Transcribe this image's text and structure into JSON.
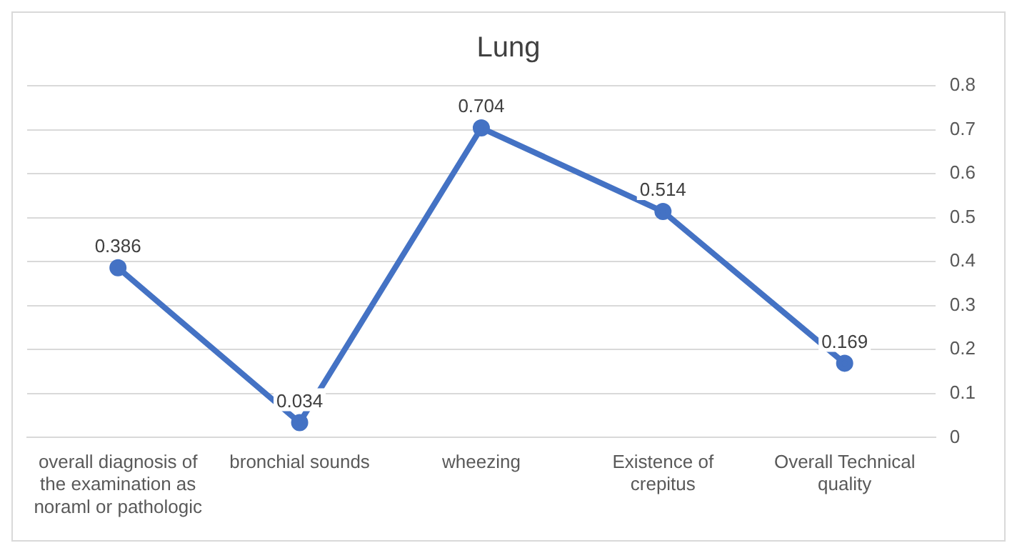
{
  "chart_data": {
    "type": "line",
    "title": "Lung",
    "categories": [
      "overall diagnosis of the examination as noraml or pathologic",
      "bronchial sounds",
      "wheezing",
      "Existence of crepitus",
      "Overall Technical quality"
    ],
    "series": [
      {
        "color": "#4472c4",
        "values": [
          0.386,
          0.034,
          0.704,
          0.514,
          0.169
        ]
      }
    ],
    "ylim": [
      0,
      0.8
    ],
    "yticks": [
      0,
      0.1,
      0.2,
      0.3,
      0.4,
      0.5,
      0.6,
      0.7,
      0.8
    ],
    "grid": "y",
    "legend": false,
    "marker": "circle",
    "line_style": "solid",
    "data_labels": true
  }
}
